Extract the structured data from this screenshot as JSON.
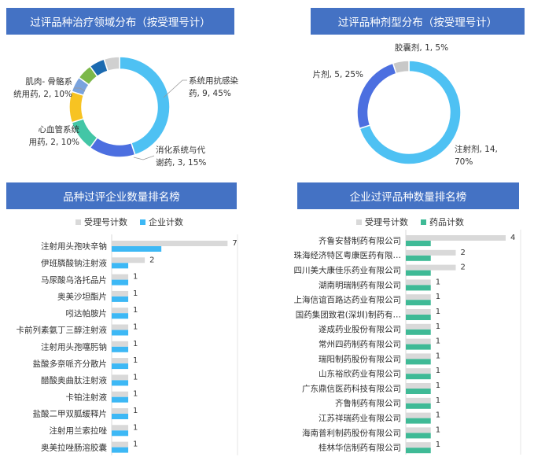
{
  "chart_data": [
    {
      "type": "pie",
      "title": "过评品种治疗领域分布（按受理号计）",
      "slices": [
        {
          "label": "系统用抗感染药",
          "value": 9,
          "percent": "45%",
          "color": "#4ec1f3",
          "label_lines": [
            "系统用抗感染",
            "药, 9, 45%"
          ]
        },
        {
          "label": "消化系统与代谢药",
          "value": 3,
          "percent": "15%",
          "color": "#4c6fe0",
          "label_lines": [
            "消化系统与代",
            "谢药, 3, 15%"
          ]
        },
        {
          "label": "心血管系统用药",
          "value": 2,
          "percent": "10%",
          "color": "#43c6a6",
          "label_lines": [
            "心血管系统",
            "用药, 2, 10%"
          ]
        },
        {
          "label": "肌肉-骨骼系统用药",
          "value": 2,
          "percent": "10%",
          "color": "#f7c322",
          "label_lines": [
            "肌肉- 骨骼系",
            "统用药, 2, 10%"
          ]
        },
        {
          "label": "",
          "value": 1,
          "percent": "5%",
          "color": "#7aa3de",
          "label_lines": []
        },
        {
          "label": "",
          "value": 1,
          "percent": "5%",
          "color": "#7cb84a",
          "label_lines": []
        },
        {
          "label": "",
          "value": 1,
          "percent": "5%",
          "color": "#1b6ab0",
          "label_lines": []
        },
        {
          "label": "",
          "value": 1,
          "percent": "5%",
          "color": "#d0d0d0",
          "label_lines": []
        }
      ]
    },
    {
      "type": "pie",
      "title": "过评品种剂型分布（按受理号计）",
      "slices": [
        {
          "label": "注射剂",
          "value": 14,
          "percent": "70%",
          "color": "#4ec1f3",
          "label_lines": [
            "注射剂, 14,",
            "70%"
          ]
        },
        {
          "label": "片剂",
          "value": 5,
          "percent": "25%",
          "color": "#4c6fe0",
          "label_lines": [
            "片剂, 5, 25%"
          ]
        },
        {
          "label": "胶囊剂",
          "value": 1,
          "percent": "5%",
          "color": "#c8c8c8",
          "label_lines": [
            "胶囊剂, 1, 5%"
          ]
        }
      ]
    },
    {
      "type": "bar",
      "orientation": "horizontal",
      "title": "品种过评企业数量排名榜",
      "legend": [
        "受理号计数",
        "企业计数"
      ],
      "series_colors": [
        "#d9d9d9",
        "#3db8f5"
      ],
      "categories": [
        "注射用头孢呋辛钠",
        "伊班膦酸钠注射液",
        "马尿酸乌洛托品片",
        "奥美沙坦酯片",
        "吲达帕胺片",
        "卡前列素氨丁三醇注射液",
        "注射用头孢噻肟钠",
        "盐酸多奈哌齐分散片",
        "醋酸奥曲肽注射液",
        "卡铂注射液",
        "盐酸二甲双胍缓释片",
        "注射用兰索拉唑",
        "奥美拉唑肠溶胶囊"
      ],
      "series": [
        {
          "name": "受理号计数",
          "values": [
            7,
            2,
            1,
            1,
            1,
            1,
            1,
            1,
            1,
            1,
            1,
            1,
            1
          ]
        },
        {
          "name": "企业计数",
          "values": [
            3,
            1,
            1,
            1,
            1,
            1,
            1,
            1,
            1,
            1,
            1,
            1,
            1
          ]
        }
      ],
      "data_labels": [
        "7",
        "2",
        "1",
        "1",
        "1",
        "1",
        "1",
        "1",
        "1",
        "1",
        "1",
        "1",
        "1"
      ],
      "xlim": [
        0,
        7.6
      ]
    },
    {
      "type": "bar",
      "orientation": "horizontal",
      "title": "企业过评品种数量排名榜",
      "legend": [
        "受理号计数",
        "药品计数"
      ],
      "series_colors": [
        "#d9d9d9",
        "#3fba96"
      ],
      "categories": [
        "齐鲁安替制药有限公司",
        "珠海经济特区粤康医药有限…",
        "四川美大康佳乐药业有限公司",
        "湖南明瑞制药有限公司",
        "上海信谊百路达药业有限公司",
        "国药集团致君(深圳)制药有…",
        "遂成药业股份有限公司",
        "常州四药制药有限公司",
        "瑞阳制药股份有限公司",
        "山东裕欣药业有限公司",
        "广东鼎信医药科技有限公司",
        "齐鲁制药有限公司",
        "江苏祥瑞药业有限公司",
        "海南普利制药股份有限公司",
        "桂林华信制药有限公司"
      ],
      "series": [
        {
          "name": "受理号计数",
          "values": [
            4,
            2,
            2,
            1,
            1,
            1,
            1,
            1,
            1,
            1,
            1,
            1,
            1,
            1,
            1
          ]
        },
        {
          "name": "药品计数",
          "values": [
            1,
            1,
            1,
            1,
            1,
            1,
            1,
            1,
            1,
            1,
            1,
            1,
            1,
            1,
            1
          ]
        }
      ],
      "data_labels": [
        "4",
        "2",
        "2",
        "1",
        "1",
        "1",
        "1",
        "1",
        "1",
        "1",
        "1",
        "1",
        "1",
        "1",
        "1"
      ],
      "xlim": [
        0,
        4.6
      ]
    }
  ]
}
